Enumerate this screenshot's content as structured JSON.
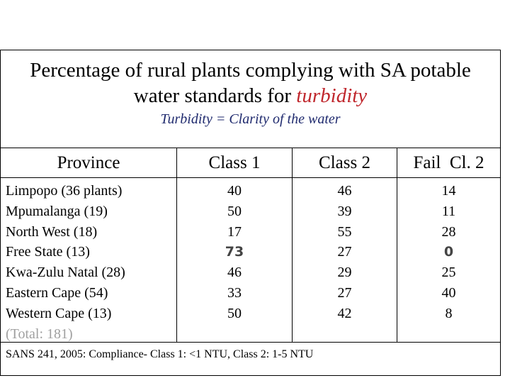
{
  "title": {
    "line1": "Percentage of rural plants complying with SA potable",
    "line2_prefix": "water standards for ",
    "line2_highlight": "turbidity",
    "subtitle": "Turbidity = Clarity of the water"
  },
  "colors": {
    "highlight": "#c0272d",
    "subtitle": "#1f2a6e",
    "muted": "#a0a0a0"
  },
  "table": {
    "headers": [
      "Province",
      "Class 1",
      "Class 2",
      "Fail  Cl. 2"
    ],
    "rows": [
      {
        "province": "Limpopo (36 plants)",
        "class1": "40",
        "class2": "46",
        "fail": "14"
      },
      {
        "province": "Mpumalanga (19)",
        "class1": "50",
        "class2": "39",
        "fail": "11"
      },
      {
        "province": "North West (18)",
        "class1": "17",
        "class2": "55",
        "fail": "28"
      },
      {
        "province": "Free State (13)",
        "class1": "73",
        "class2": "27",
        "fail": "0"
      },
      {
        "province": "Kwa-Zulu Natal (28)",
        "class1": "46",
        "class2": "29",
        "fail": "25"
      },
      {
        "province": "Eastern Cape (54)",
        "class1": "33",
        "class2": "27",
        "fail": "40"
      },
      {
        "province": "Western Cape (13)",
        "class1": "50",
        "class2": "42",
        "fail": "8"
      }
    ],
    "total": "(Total: 181)"
  },
  "footer": "SANS 241, 2005: Compliance- Class 1: <1 NTU, Class 2: 1-5 NTU"
}
